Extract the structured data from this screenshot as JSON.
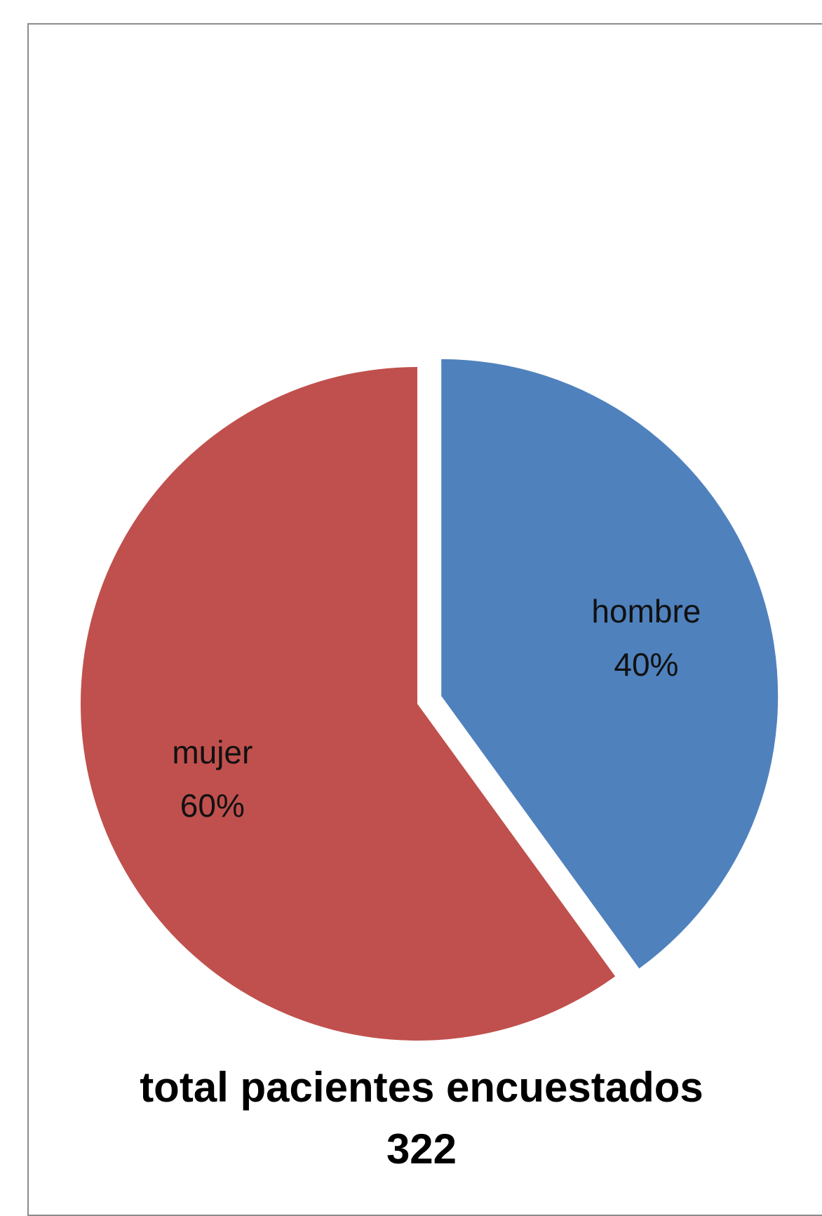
{
  "chart_data": {
    "type": "pie",
    "categories": [
      "hombre",
      "mujer"
    ],
    "values": [
      40,
      60
    ],
    "data_labels": [
      {
        "category": "hombre",
        "percent": "40%"
      },
      {
        "category": "mujer",
        "percent": "60%"
      }
    ],
    "colors": [
      "#4f81bd",
      "#c0504d"
    ],
    "exploded": [
      "hombre"
    ],
    "title": "",
    "caption": {
      "line1": "total pacientes encuestados",
      "line2": "322"
    }
  }
}
